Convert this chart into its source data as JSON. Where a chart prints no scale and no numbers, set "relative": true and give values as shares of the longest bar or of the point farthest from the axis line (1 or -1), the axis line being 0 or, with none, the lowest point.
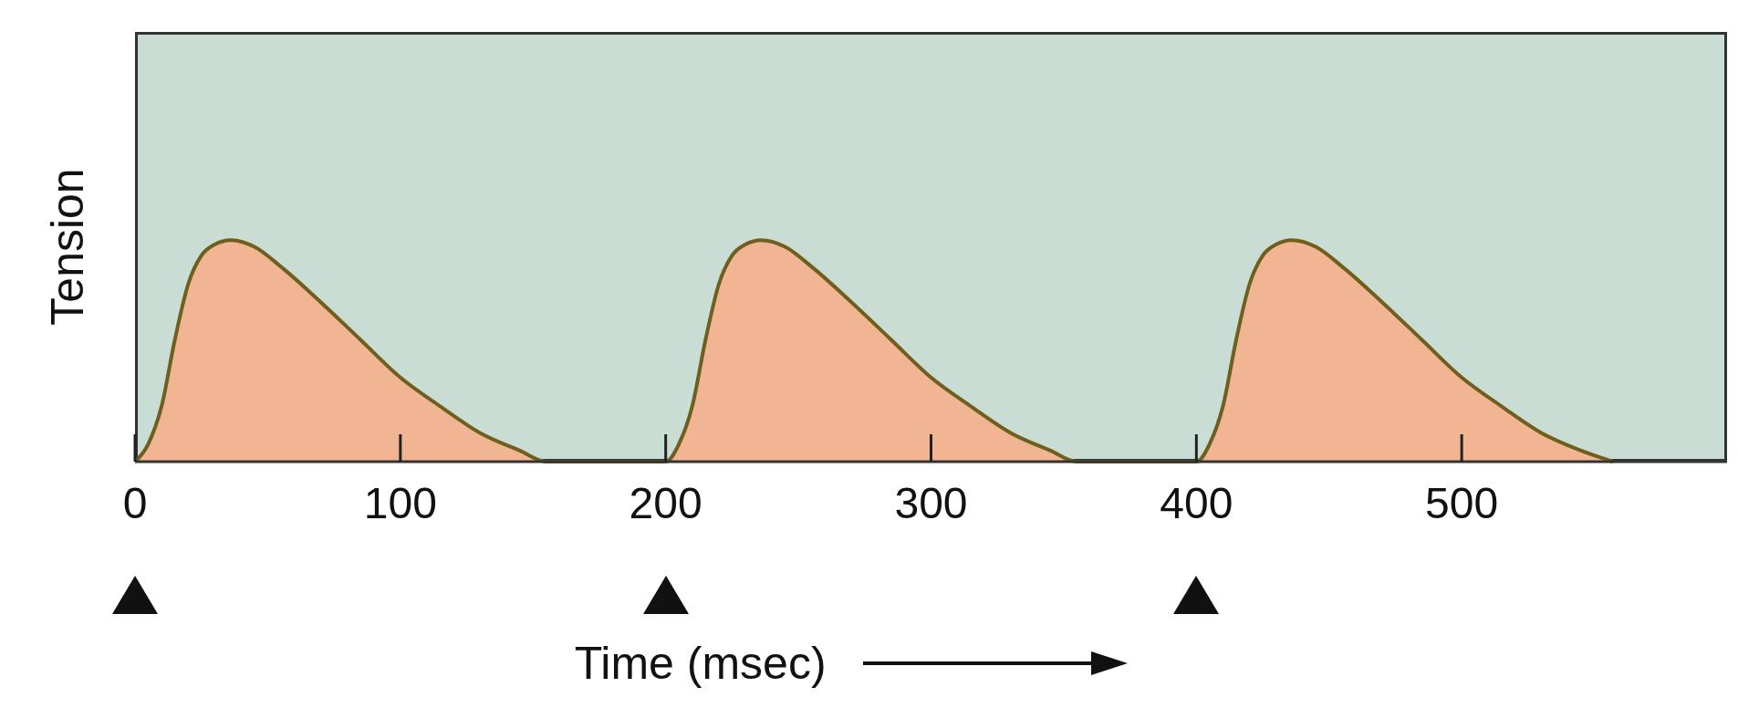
{
  "chart_data": {
    "type": "area",
    "relative": true,
    "xlabel": "Time (msec)",
    "ylabel": "Tension",
    "xlim": [
      0,
      600
    ],
    "xticks": [
      0,
      100,
      200,
      300,
      400,
      500
    ],
    "x": [
      0,
      5,
      10,
      15,
      20,
      25,
      30,
      36,
      45,
      55,
      70,
      85,
      100,
      115,
      130,
      145,
      155,
      200,
      205,
      210,
      215,
      220,
      225,
      230,
      236,
      245,
      255,
      270,
      285,
      300,
      315,
      330,
      345,
      355,
      400,
      405,
      410,
      415,
      420,
      425,
      430,
      436,
      445,
      455,
      470,
      485,
      500,
      515,
      530,
      545,
      557
    ],
    "series": [
      {
        "color": "#f2b594",
        "values": [
          0,
          0.08,
          0.25,
          0.55,
          0.8,
          0.93,
          0.98,
          1,
          0.97,
          0.88,
          0.72,
          0.55,
          0.38,
          0.25,
          0.13,
          0.05,
          0,
          0,
          0.08,
          0.25,
          0.55,
          0.8,
          0.93,
          0.98,
          1,
          0.97,
          0.88,
          0.72,
          0.55,
          0.38,
          0.25,
          0.13,
          0.05,
          0,
          0,
          0.08,
          0.25,
          0.55,
          0.8,
          0.93,
          0.98,
          1,
          0.97,
          0.88,
          0.72,
          0.55,
          0.38,
          0.25,
          0.13,
          0.05,
          0
        ]
      }
    ]
  }
}
